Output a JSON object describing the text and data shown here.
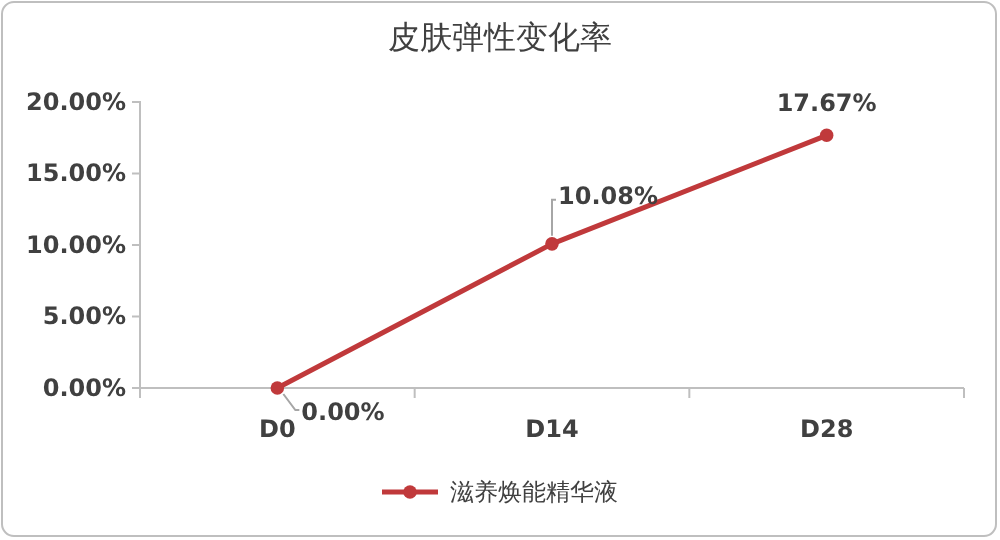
{
  "chart_data": {
    "type": "line",
    "title": "皮肤弹性变化率",
    "categories": [
      "D0",
      "D14",
      "D28"
    ],
    "series": [
      {
        "name": "滋养焕能精华液",
        "color": "#c0393b",
        "values": [
          0,
          10.08,
          17.67
        ],
        "value_labels": [
          "0.00%",
          "10.08%",
          "17.67%"
        ]
      }
    ],
    "ylim": [
      0,
      20
    ],
    "yticks": [
      {
        "value": 0,
        "label": "0.00%"
      },
      {
        "value": 5,
        "label": "5.00%"
      },
      {
        "value": 10,
        "label": "10.00%"
      },
      {
        "value": 15,
        "label": "15.00%"
      },
      {
        "value": 20,
        "label": "20.00%"
      }
    ],
    "grid": false,
    "legend": "bottom",
    "marker": "circle",
    "line_style": "solid"
  }
}
